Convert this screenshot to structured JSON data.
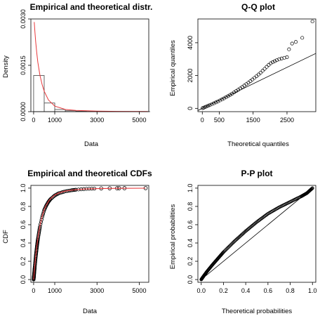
{
  "chart_data": [
    {
      "type": "histogram",
      "title": "Empirical and theoretical distr.",
      "xlabel": "Data",
      "ylabel": "Density",
      "xlim": [
        -130,
        5450
      ],
      "ylim": [
        0,
        0.003
      ],
      "xticks": [
        0,
        1000,
        3000,
        5000
      ],
      "yticks": [
        0,
        0.0015,
        0.003
      ],
      "ytick_labels": [
        "0.0000",
        "0.0015",
        "0.0030"
      ],
      "bins": [
        {
          "from": 0,
          "to": 500,
          "density": 0.00117
        },
        {
          "from": 500,
          "to": 1000,
          "density": 0.00028
        },
        {
          "from": 1000,
          "to": 1500,
          "density": 7e-05
        },
        {
          "from": 1500,
          "to": 2000,
          "density": 3e-05
        },
        {
          "from": 2000,
          "to": 2500,
          "density": 1.5e-05
        },
        {
          "from": 2500,
          "to": 3000,
          "density": 8e-06
        },
        {
          "from": 3000,
          "to": 3500,
          "density": 4e-06
        },
        {
          "from": 3500,
          "to": 4000,
          "density": 2e-06
        },
        {
          "from": 4000,
          "to": 4500,
          "density": 2e-06
        },
        {
          "from": 4500,
          "to": 5000,
          "density": 1e-06
        },
        {
          "from": 5000,
          "to": 5500,
          "density": 1e-06
        }
      ],
      "theoretical_density": {
        "x": [
          30,
          60,
          100,
          150,
          200,
          300,
          400,
          500,
          700,
          1000,
          1500,
          2000,
          3000,
          4000,
          5400
        ],
        "y": [
          0.0029,
          0.0026,
          0.00225,
          0.0019,
          0.0016,
          0.00118,
          0.00088,
          0.00066,
          0.00038,
          0.00018,
          7e-05,
          4e-05,
          1.8e-05,
          1e-05,
          6e-06
        ]
      },
      "colors": {
        "fit": "#e8383b",
        "bars": "#555555"
      }
    },
    {
      "type": "scatter",
      "title": "Q-Q plot",
      "xlabel": "Theoretical quantiles",
      "ylabel": "Empirical quantiles",
      "xlim": [
        -130,
        3350
      ],
      "ylim": [
        -200,
        5450
      ],
      "xticks": [
        0,
        500,
        1500,
        2500
      ],
      "yticks": [
        0,
        2000,
        4000
      ],
      "points": [
        [
          10,
          15
        ],
        [
          40,
          40
        ],
        [
          80,
          75
        ],
        [
          120,
          110
        ],
        [
          170,
          155
        ],
        [
          220,
          200
        ],
        [
          280,
          255
        ],
        [
          340,
          310
        ],
        [
          400,
          365
        ],
        [
          460,
          425
        ],
        [
          520,
          485
        ],
        [
          580,
          545
        ],
        [
          640,
          610
        ],
        [
          700,
          680
        ],
        [
          760,
          750
        ],
        [
          820,
          820
        ],
        [
          880,
          895
        ],
        [
          940,
          975
        ],
        [
          1000,
          1055
        ],
        [
          1060,
          1135
        ],
        [
          1120,
          1215
        ],
        [
          1180,
          1300
        ],
        [
          1240,
          1390
        ],
        [
          1300,
          1480
        ],
        [
          1360,
          1570
        ],
        [
          1420,
          1660
        ],
        [
          1480,
          1760
        ],
        [
          1540,
          1860
        ],
        [
          1600,
          1960
        ],
        [
          1660,
          2065
        ],
        [
          1720,
          2175
        ],
        [
          1780,
          2290
        ],
        [
          1840,
          2410
        ],
        [
          1900,
          2530
        ],
        [
          1960,
          2650
        ],
        [
          2020,
          2750
        ],
        [
          2080,
          2820
        ],
        [
          2140,
          2880
        ],
        [
          2200,
          2940
        ],
        [
          2270,
          3000
        ],
        [
          2340,
          3040
        ],
        [
          2420,
          3080
        ],
        [
          2500,
          3120
        ],
        [
          2560,
          3600
        ],
        [
          2650,
          3950
        ],
        [
          2760,
          4050
        ],
        [
          2950,
          4300
        ],
        [
          3250,
          5300
        ]
      ],
      "reference_line": {
        "x": [
          -130,
          3350
        ],
        "y": [
          -130,
          3350
        ]
      }
    },
    {
      "type": "line",
      "title": "Empirical and theoretical CDFs",
      "xlabel": "Data",
      "ylabel": "CDF",
      "xlim": [
        -130,
        5450
      ],
      "ylim": [
        -0.03,
        1.03
      ],
      "xticks": [
        0,
        1000,
        3000,
        5000
      ],
      "yticks": [
        0.0,
        0.2,
        0.4,
        0.6,
        0.8,
        1.0
      ],
      "ytick_labels": [
        "0.0",
        "0.2",
        "0.4",
        "0.6",
        "0.8",
        "1.0"
      ],
      "empirical_cdf": {
        "x": [
          0,
          20,
          50,
          100,
          150,
          200,
          300,
          400,
          500,
          600,
          700,
          800,
          1000,
          1200,
          1500,
          1800,
          2000,
          2500,
          3000
        ],
        "y": [
          0.0,
          0.05,
          0.13,
          0.25,
          0.35,
          0.44,
          0.58,
          0.68,
          0.76,
          0.81,
          0.85,
          0.88,
          0.92,
          0.945,
          0.965,
          0.977,
          0.983,
          0.992,
          0.996
        ]
      },
      "tail_points": {
        "x": [
          3200,
          3600,
          3950,
          4050,
          4300,
          5300
        ],
        "y": [
          0.997,
          0.998,
          0.9985,
          0.999,
          0.9995,
          1.0
        ]
      },
      "theoretical_cdf": {
        "x": [
          0,
          20,
          50,
          100,
          150,
          200,
          300,
          400,
          500,
          600,
          700,
          800,
          1000,
          1200,
          1500,
          1800,
          2000,
          2500,
          3000,
          4000,
          5300
        ],
        "y": [
          0.0,
          0.06,
          0.14,
          0.26,
          0.36,
          0.45,
          0.59,
          0.69,
          0.765,
          0.815,
          0.855,
          0.885,
          0.925,
          0.948,
          0.968,
          0.978,
          0.983,
          0.991,
          0.995,
          0.998,
          0.9995
        ]
      },
      "colors": {
        "fit": "#e8383b",
        "points": "#000000"
      }
    },
    {
      "type": "line",
      "title": "P-P plot",
      "xlabel": "Theoretical probabilities",
      "ylabel": "Empirical probabilities",
      "xlim": [
        -0.03,
        1.03
      ],
      "ylim": [
        -0.03,
        1.03
      ],
      "xticks": [
        0.0,
        0.2,
        0.4,
        0.6,
        0.8,
        1.0
      ],
      "yticks": [
        0.0,
        0.2,
        0.4,
        0.6,
        0.8,
        1.0
      ],
      "tick_labels": [
        "0.0",
        "0.2",
        "0.4",
        "0.6",
        "0.8",
        "1.0"
      ],
      "curve": {
        "x": [
          0.0,
          0.02,
          0.05,
          0.1,
          0.15,
          0.2,
          0.3,
          0.4,
          0.5,
          0.6,
          0.7,
          0.8,
          0.9,
          0.95,
          1.0
        ],
        "y": [
          0.0,
          0.035,
          0.085,
          0.16,
          0.23,
          0.3,
          0.42,
          0.53,
          0.63,
          0.72,
          0.79,
          0.85,
          0.91,
          0.945,
          1.0
        ]
      },
      "reference_line": {
        "x": [
          0,
          1
        ],
        "y": [
          0,
          1
        ]
      }
    }
  ]
}
